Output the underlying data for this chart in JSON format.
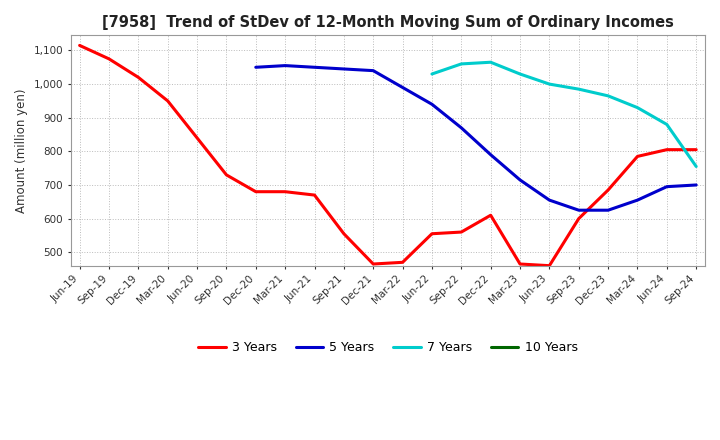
{
  "title": "[7958]  Trend of StDev of 12-Month Moving Sum of Ordinary Incomes",
  "ylabel": "Amount (million yen)",
  "ylim": [
    460,
    1145
  ],
  "yticks": [
    500,
    600,
    700,
    800,
    900,
    1000,
    1100
  ],
  "background_color": "#ffffff",
  "plot_bg_color": "#ffffff",
  "grid_color": "#aaaaaa",
  "x_labels": [
    "Jun-19",
    "Sep-19",
    "Dec-19",
    "Mar-20",
    "Jun-20",
    "Sep-20",
    "Dec-20",
    "Mar-21",
    "Jun-21",
    "Sep-21",
    "Dec-21",
    "Mar-22",
    "Jun-22",
    "Sep-22",
    "Dec-22",
    "Mar-23",
    "Jun-23",
    "Sep-23",
    "Dec-23",
    "Mar-24",
    "Jun-24",
    "Sep-24"
  ],
  "series": {
    "3 Years": {
      "color": "#ff0000",
      "data": [
        1115,
        1075,
        1020,
        950,
        840,
        730,
        680,
        680,
        670,
        555,
        465,
        470,
        555,
        560,
        610,
        465,
        460,
        600,
        685,
        785,
        805,
        805
      ]
    },
    "5 Years": {
      "color": "#0000cc",
      "data": [
        null,
        null,
        null,
        null,
        null,
        null,
        1050,
        1055,
        1050,
        1045,
        1040,
        990,
        940,
        870,
        790,
        715,
        655,
        625,
        625,
        655,
        695,
        700
      ]
    },
    "7 Years": {
      "color": "#00cccc",
      "data": [
        null,
        null,
        null,
        null,
        null,
        null,
        null,
        null,
        null,
        null,
        null,
        null,
        1030,
        1060,
        1065,
        1030,
        1000,
        985,
        965,
        930,
        880,
        755
      ]
    },
    "10 Years": {
      "color": "#006600",
      "data": [
        null,
        null,
        null,
        null,
        null,
        null,
        null,
        null,
        null,
        null,
        null,
        null,
        null,
        null,
        null,
        null,
        null,
        null,
        null,
        null,
        null,
        null
      ]
    }
  },
  "legend_order": [
    "3 Years",
    "5 Years",
    "7 Years",
    "10 Years"
  ]
}
